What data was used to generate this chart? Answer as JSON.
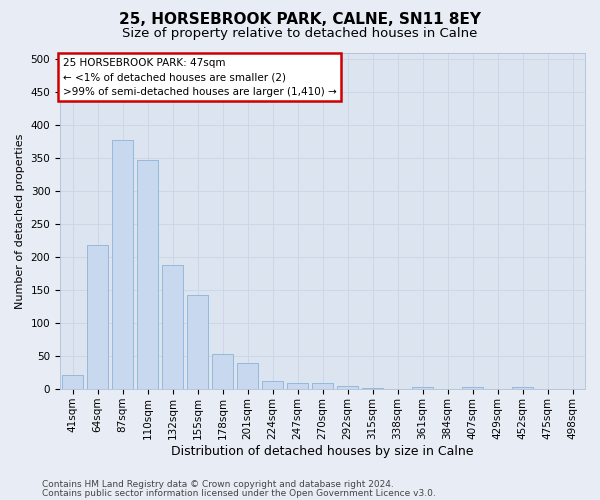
{
  "title1": "25, HORSEBROOK PARK, CALNE, SN11 8EY",
  "title2": "Size of property relative to detached houses in Calne",
  "xlabel": "Distribution of detached houses by size in Calne",
  "ylabel": "Number of detached properties",
  "categories": [
    "41sqm",
    "64sqm",
    "87sqm",
    "110sqm",
    "132sqm",
    "155sqm",
    "178sqm",
    "201sqm",
    "224sqm",
    "247sqm",
    "270sqm",
    "292sqm",
    "315sqm",
    "338sqm",
    "361sqm",
    "384sqm",
    "407sqm",
    "429sqm",
    "452sqm",
    "475sqm",
    "498sqm"
  ],
  "values": [
    22,
    218,
    378,
    347,
    188,
    143,
    53,
    40,
    12,
    9,
    9,
    5,
    2,
    0,
    4,
    0,
    4,
    0,
    4,
    0,
    1
  ],
  "bar_color": "#c8d8ee",
  "bar_edge_color": "#8ab4d8",
  "annotation_line1": "25 HORSEBROOK PARK: 47sqm",
  "annotation_line2": "← <1% of detached houses are smaller (2)",
  "annotation_line3": ">99% of semi-detached houses are larger (1,410) →",
  "annotation_box_color": "#ffffff",
  "annotation_box_edge_color": "#cc0000",
  "ylim": [
    0,
    510
  ],
  "yticks": [
    0,
    50,
    100,
    150,
    200,
    250,
    300,
    350,
    400,
    450,
    500
  ],
  "grid_color": "#c8d4e8",
  "bg_color": "#e8edf5",
  "plot_bg_color": "#dce4f0",
  "footer1": "Contains HM Land Registry data © Crown copyright and database right 2024.",
  "footer2": "Contains public sector information licensed under the Open Government Licence v3.0.",
  "title1_fontsize": 11,
  "title2_fontsize": 9.5,
  "xlabel_fontsize": 9,
  "ylabel_fontsize": 8,
  "tick_fontsize": 7.5,
  "annotation_fontsize": 7.5,
  "footer_fontsize": 6.5
}
